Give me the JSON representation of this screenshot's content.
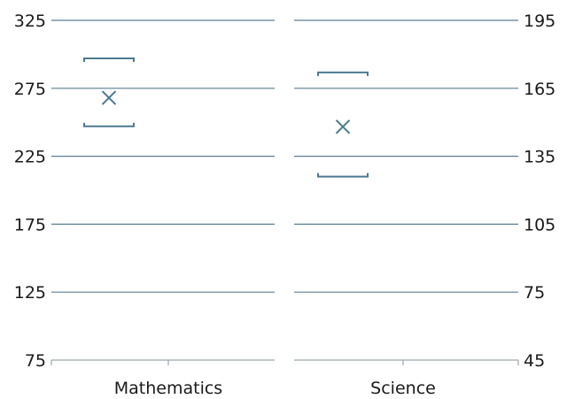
{
  "chart_data": {
    "type": "scatter",
    "subtype": "mean-with-error-bars",
    "colors": {
      "grid": "#5a7f93",
      "marker": "#4c7a90",
      "axis": "#9aa6ad"
    },
    "panels": [
      {
        "category": "Mathematics",
        "axis_side": "left",
        "ylim": [
          75,
          325
        ],
        "yticks": [
          75,
          125,
          175,
          225,
          275,
          325
        ],
        "tick_labels": [
          "75",
          "125",
          "175",
          "225",
          "275",
          "325"
        ],
        "mean": 268,
        "upper": 297,
        "lower": 247
      },
      {
        "category": "Science",
        "axis_side": "right",
        "ylim": [
          45,
          195
        ],
        "yticks": [
          45,
          75,
          105,
          135,
          165,
          195
        ],
        "tick_labels": [
          "45",
          "75",
          "105",
          "135",
          "165",
          "195"
        ],
        "mean": 148,
        "upper": 172,
        "lower": 126
      }
    ],
    "grid": true,
    "legend": "none"
  }
}
